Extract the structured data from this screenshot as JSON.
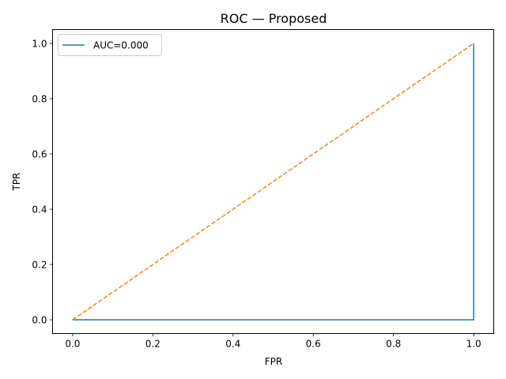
{
  "chart_data": {
    "type": "line",
    "title": "ROC — Proposed",
    "xlabel": "FPR",
    "ylabel": "TPR",
    "xlim": [
      -0.05,
      1.05
    ],
    "ylim": [
      -0.05,
      1.05
    ],
    "xticks": [
      0.0,
      0.2,
      0.4,
      0.6,
      0.8,
      1.0
    ],
    "yticks": [
      0.0,
      0.2,
      0.4,
      0.6,
      0.8,
      1.0
    ],
    "xtick_labels": [
      "0.0",
      "0.2",
      "0.4",
      "0.6",
      "0.8",
      "1.0"
    ],
    "ytick_labels": [
      "0.0",
      "0.2",
      "0.4",
      "0.6",
      "0.8",
      "1.0"
    ],
    "grid": false,
    "legend_position": "top-left",
    "series": [
      {
        "name": "AUC=0.000",
        "color": "#1f77b4",
        "style": "solid",
        "x": [
          0.0,
          1.0,
          1.0
        ],
        "y": [
          0.0,
          0.0,
          1.0
        ]
      },
      {
        "color": "#ff7f0e",
        "style": "dashed",
        "x": [
          0.0,
          1.0
        ],
        "y": [
          0.0,
          1.0
        ]
      }
    ]
  }
}
